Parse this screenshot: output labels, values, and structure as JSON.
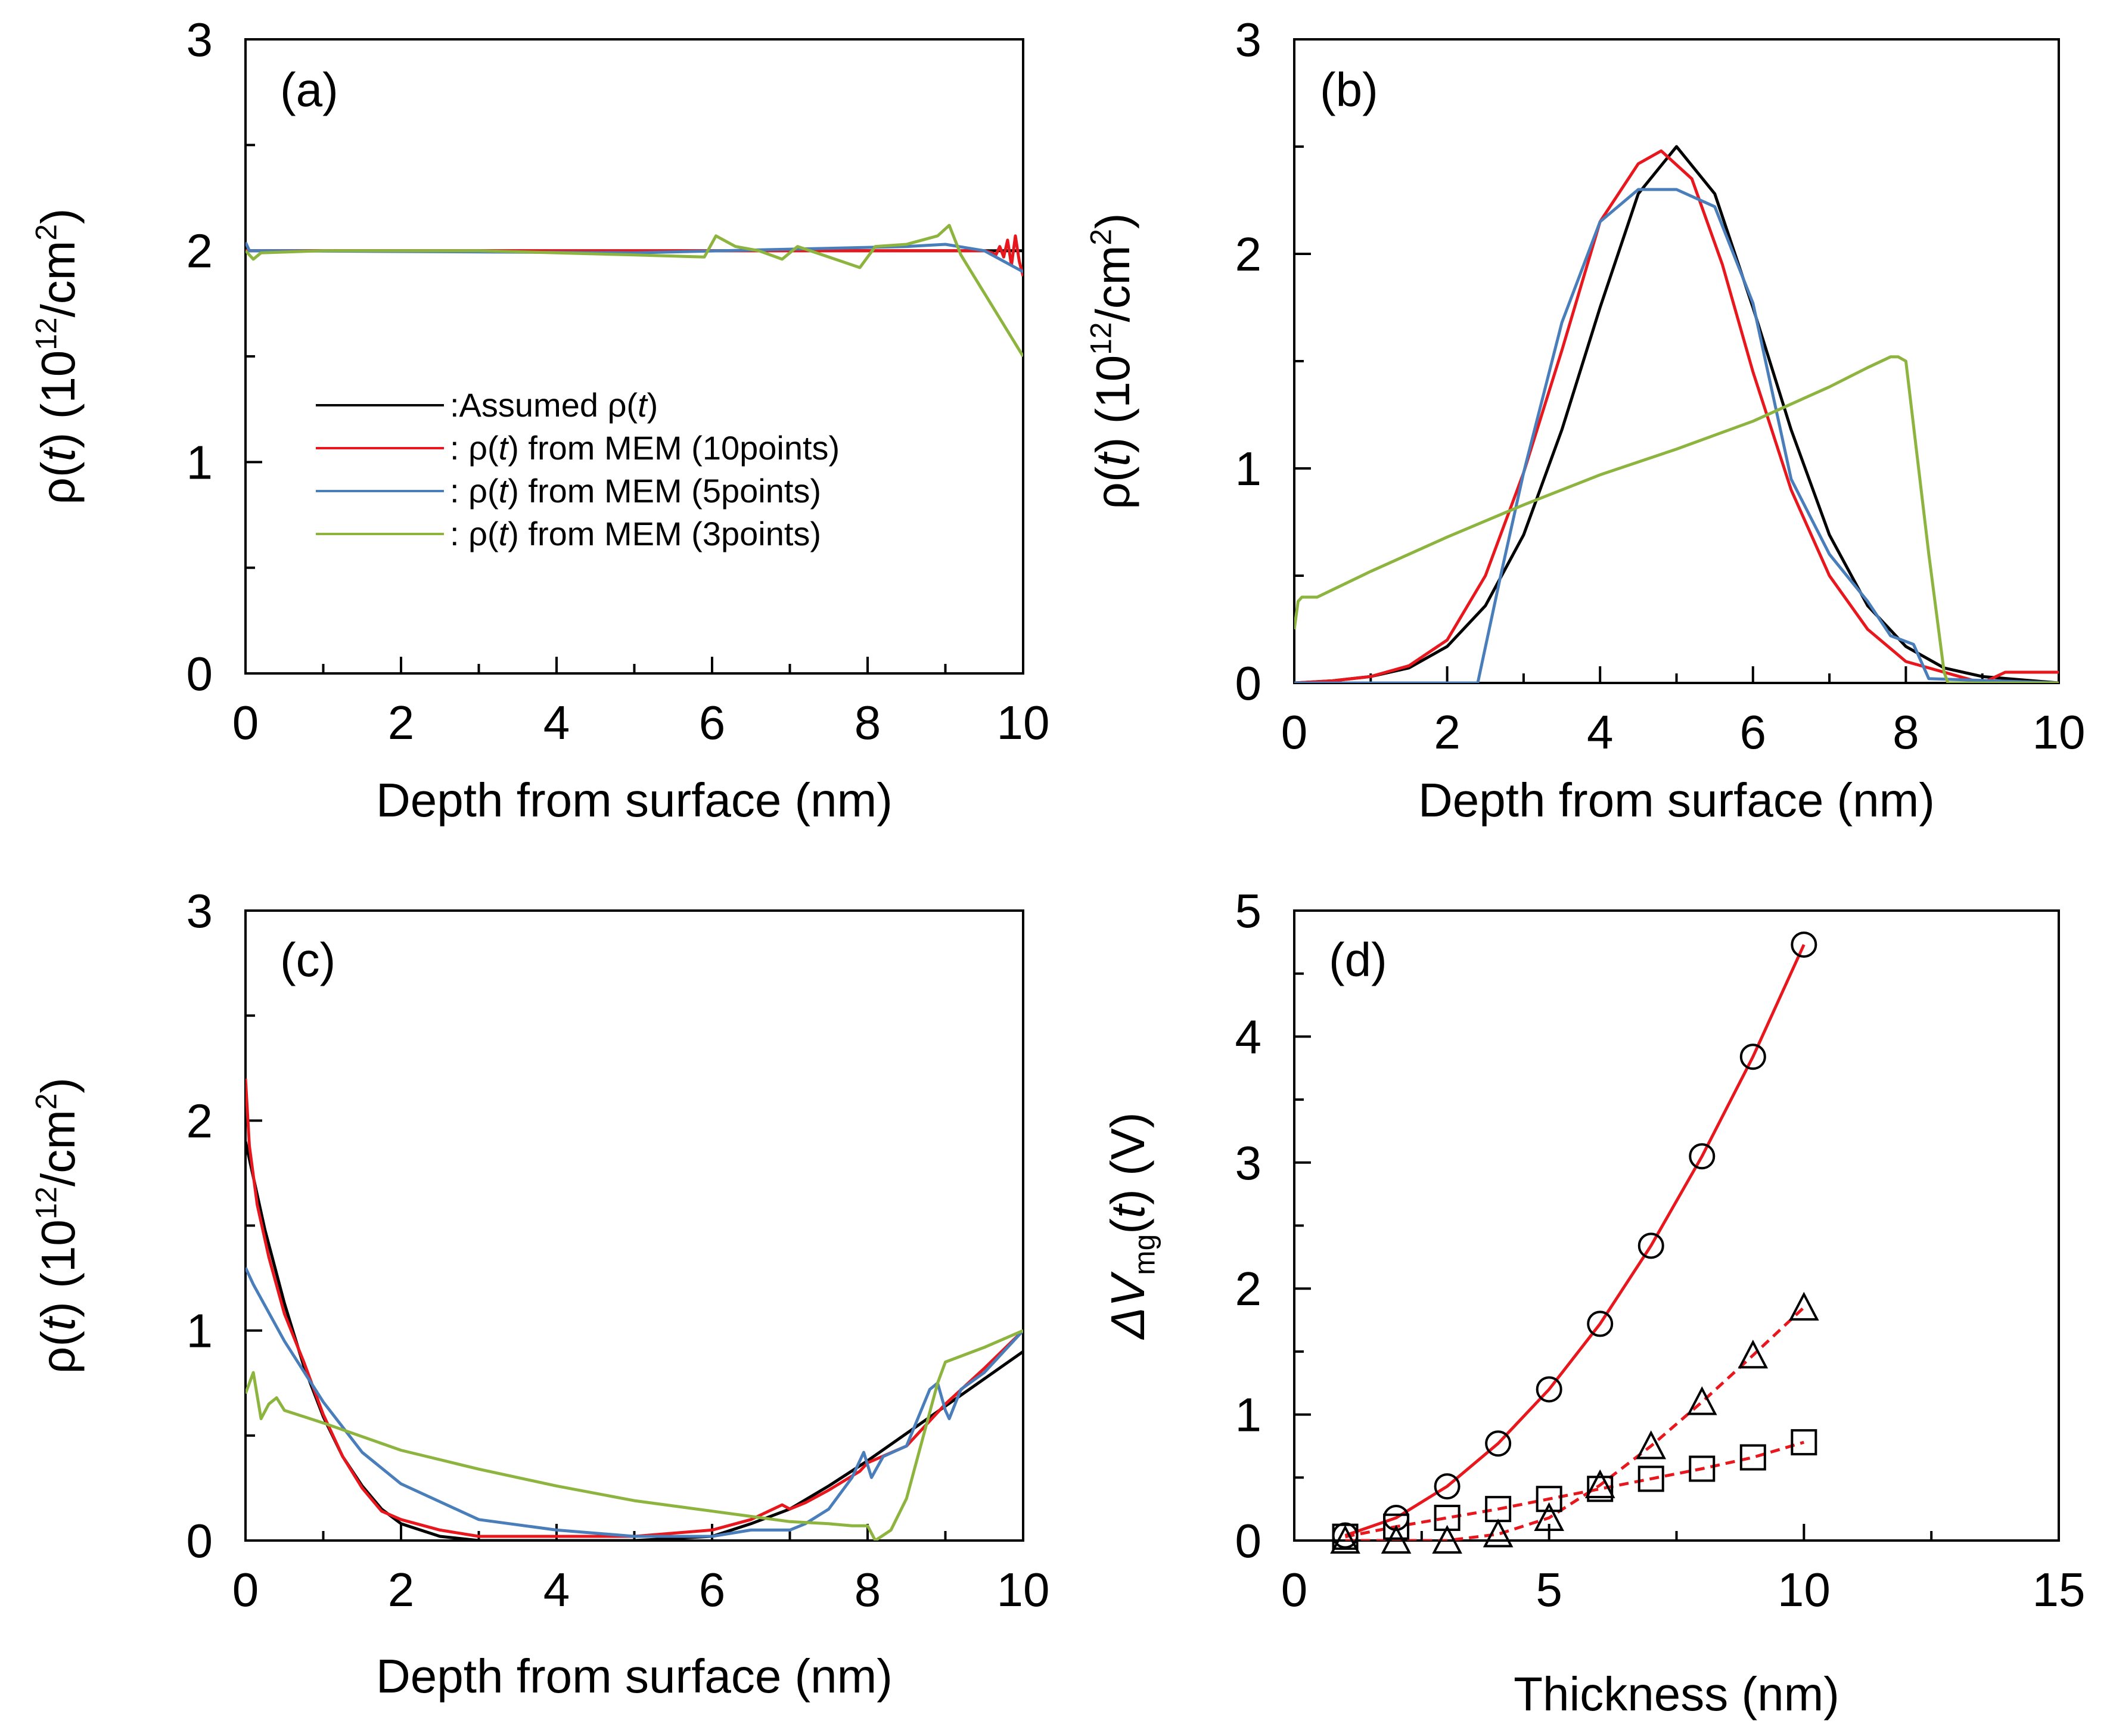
{
  "chart_data": [
    {
      "panel_label": "(a)",
      "type": "line",
      "xlabel": "Depth from surface (nm)",
      "ylabel_parts": [
        "ρ(",
        "t",
        ") (10",
        "12",
        "/cm",
        "2",
        ")"
      ],
      "xlim": [
        0,
        10
      ],
      "ylim": [
        0,
        3
      ],
      "xticks": [
        "0",
        "2",
        "4",
        "6",
        "8",
        "10"
      ],
      "yticks": [
        "0",
        "1",
        "2",
        "3"
      ],
      "legend_placement": "center-left",
      "legend": [
        {
          "color": "#000000",
          "parts": [
            ":Assumed ",
            "ρ(",
            "t",
            ")"
          ]
        },
        {
          "color": "#e8171d",
          "parts": [
            ": ",
            "ρ(",
            "t",
            ") from MEM (10points)"
          ]
        },
        {
          "color": "#4a7ebb",
          "parts": [
            ": ",
            "ρ(",
            "t",
            ") from MEM (5points)"
          ]
        },
        {
          "color": "#8db43e",
          "parts": [
            ": ",
            "ρ(",
            "t",
            ") from MEM (3points)"
          ]
        }
      ],
      "series": [
        {
          "color": "#000000",
          "x": [
            0,
            10
          ],
          "y": [
            2.0,
            2.0
          ]
        },
        {
          "color": "#e8171d",
          "x": [
            0,
            9.5,
            9.6,
            9.65,
            9.7,
            9.75,
            9.8,
            9.85,
            9.9,
            9.95,
            10
          ],
          "y": [
            2.0,
            2.0,
            1.99,
            1.98,
            2.02,
            1.97,
            2.05,
            1.93,
            2.07,
            1.95,
            1.88
          ]
        },
        {
          "color": "#4a7ebb",
          "x": [
            0,
            0.05,
            0.1,
            5,
            8.5,
            9,
            9.5,
            10
          ],
          "y": [
            2.04,
            2.0,
            2.0,
            1.99,
            2.02,
            2.03,
            2.0,
            1.9
          ]
        },
        {
          "color": "#8db43e",
          "x": [
            0,
            0.1,
            0.2,
            1,
            2,
            3,
            4,
            5,
            5.9,
            6.05,
            6.3,
            6.6,
            6.9,
            7.1,
            7.5,
            7.9,
            8.0,
            8.1,
            8.5,
            8.9,
            9.05,
            9.2,
            10
          ],
          "y": [
            2.0,
            1.96,
            1.99,
            2.0,
            2.0,
            2.0,
            1.99,
            1.98,
            1.97,
            2.07,
            2.02,
            2.0,
            1.96,
            2.02,
            1.97,
            1.92,
            1.97,
            2.02,
            2.03,
            2.07,
            2.12,
            1.98,
            1.5
          ]
        }
      ]
    },
    {
      "panel_label": "(b)",
      "type": "line",
      "xlabel": "Depth from surface (nm)",
      "ylabel_parts": [
        "ρ(",
        "t",
        ") (10",
        "12",
        "/cm",
        "2",
        ")"
      ],
      "xlim": [
        0,
        10
      ],
      "ylim": [
        0,
        3
      ],
      "xticks": [
        "0",
        "2",
        "4",
        "6",
        "8",
        "10"
      ],
      "yticks": [
        "0",
        "1",
        "2",
        "3"
      ],
      "series": [
        {
          "color": "#000000",
          "x": [
            0,
            0.5,
            1,
            1.5,
            2,
            2.5,
            3,
            3.5,
            4,
            4.5,
            5,
            5.5,
            6,
            6.5,
            7,
            7.5,
            8,
            8.5,
            9,
            10
          ],
          "y": [
            0.0,
            0.01,
            0.03,
            0.07,
            0.17,
            0.36,
            0.69,
            1.18,
            1.75,
            2.28,
            2.5,
            2.28,
            1.75,
            1.18,
            0.69,
            0.36,
            0.17,
            0.07,
            0.03,
            0.0
          ]
        },
        {
          "color": "#e8171d",
          "x": [
            0,
            0.5,
            1,
            1.5,
            2,
            2.5,
            3,
            3.5,
            4,
            4.5,
            4.8,
            5.2,
            5.6,
            6,
            6.5,
            7,
            7.5,
            8,
            8.5,
            9,
            9.3,
            10
          ],
          "y": [
            0.0,
            0.01,
            0.03,
            0.08,
            0.2,
            0.5,
            0.98,
            1.55,
            2.15,
            2.42,
            2.48,
            2.35,
            1.95,
            1.45,
            0.9,
            0.5,
            0.25,
            0.1,
            0.05,
            0.0,
            0.05,
            0.05
          ]
        },
        {
          "color": "#4a7ebb",
          "x": [
            0,
            2.3,
            2.4,
            2.7,
            3,
            3.5,
            4,
            4.5,
            5,
            5.5,
            6,
            6.5,
            7,
            7.5,
            7.8,
            8.1,
            8.3,
            10
          ],
          "y": [
            0.0,
            0.0,
            0.0,
            0.5,
            0.98,
            1.68,
            2.15,
            2.3,
            2.3,
            2.22,
            1.77,
            0.95,
            0.6,
            0.38,
            0.22,
            0.18,
            0.02,
            0.0
          ]
        },
        {
          "color": "#8db43e",
          "x": [
            0,
            0.05,
            0.1,
            0.3,
            1,
            2,
            3,
            4,
            5,
            6,
            7,
            7.5,
            7.8,
            7.9,
            8.0,
            8.3,
            8.5,
            8.55,
            10
          ],
          "y": [
            0.25,
            0.38,
            0.4,
            0.4,
            0.52,
            0.68,
            0.83,
            0.97,
            1.09,
            1.22,
            1.38,
            1.47,
            1.52,
            1.52,
            1.5,
            0.6,
            0.05,
            0.0,
            0.0
          ]
        }
      ]
    },
    {
      "panel_label": "(c)",
      "type": "line",
      "xlabel": "Depth from surface (nm)",
      "ylabel_parts": [
        "ρ(",
        "t",
        ") (10",
        "12",
        "/cm",
        "2",
        ")"
      ],
      "xlim": [
        0,
        10
      ],
      "ylim": [
        0,
        3
      ],
      "xticks": [
        "0",
        "2",
        "4",
        "6",
        "8",
        "10"
      ],
      "yticks": [
        "0",
        "1",
        "2",
        "3"
      ],
      "series": [
        {
          "color": "#000000",
          "x": [
            0,
            0.25,
            0.5,
            0.75,
            1,
            1.25,
            1.5,
            1.75,
            2,
            2.5,
            3,
            4,
            5,
            6,
            6.5,
            7,
            7.5,
            8,
            8.5,
            9,
            9.5,
            10
          ],
          "y": [
            1.9,
            1.48,
            1.13,
            0.83,
            0.59,
            0.4,
            0.26,
            0.15,
            0.08,
            0.02,
            0.0,
            0.0,
            0.0,
            0.02,
            0.08,
            0.15,
            0.26,
            0.38,
            0.51,
            0.64,
            0.77,
            0.9
          ]
        },
        {
          "color": "#e8171d",
          "x": [
            0,
            0.05,
            0.15,
            0.3,
            0.5,
            0.75,
            1,
            1.25,
            1.5,
            1.75,
            2,
            2.5,
            3,
            4,
            5,
            6,
            6.5,
            6.9,
            7.0,
            7.2,
            7.5,
            7.9,
            8.0,
            8.5,
            9,
            9.5,
            10
          ],
          "y": [
            2.2,
            1.88,
            1.6,
            1.35,
            1.08,
            0.85,
            0.6,
            0.4,
            0.25,
            0.14,
            0.1,
            0.05,
            0.02,
            0.02,
            0.02,
            0.05,
            0.1,
            0.17,
            0.15,
            0.18,
            0.24,
            0.33,
            0.37,
            0.45,
            0.65,
            0.82,
            1.0
          ]
        },
        {
          "color": "#4a7ebb",
          "x": [
            0,
            0.1,
            0.5,
            1,
            1.5,
            2,
            3,
            4,
            5,
            6,
            6.5,
            7,
            7.2,
            7.5,
            7.8,
            7.95,
            8.05,
            8.2,
            8.5,
            8.8,
            8.9,
            9.0,
            9.05,
            9.2,
            9.5,
            10
          ],
          "y": [
            1.3,
            1.22,
            0.95,
            0.66,
            0.42,
            0.27,
            0.1,
            0.05,
            0.02,
            0.02,
            0.05,
            0.05,
            0.08,
            0.15,
            0.3,
            0.42,
            0.3,
            0.4,
            0.45,
            0.72,
            0.75,
            0.62,
            0.58,
            0.72,
            0.8,
            1.0
          ]
        },
        {
          "color": "#8db43e",
          "x": [
            0,
            0.1,
            0.2,
            0.3,
            0.4,
            0.5,
            1,
            2,
            3,
            4,
            5,
            6,
            7,
            7.5,
            7.8,
            8.0,
            8.1,
            8.3,
            8.5,
            8.9,
            9.0,
            9.5,
            10
          ],
          "y": [
            0.7,
            0.8,
            0.58,
            0.65,
            0.68,
            0.62,
            0.56,
            0.43,
            0.34,
            0.26,
            0.19,
            0.14,
            0.09,
            0.08,
            0.07,
            0.07,
            0.0,
            0.05,
            0.2,
            0.75,
            0.85,
            0.92,
            1.0
          ]
        }
      ]
    },
    {
      "panel_label": "(d)",
      "type": "scatter",
      "xlabel": "Thickness (nm)",
      "ylabel_parts": [
        "ΔV",
        "mg",
        "(",
        "t",
        ") (V)"
      ],
      "xlim": [
        0,
        15
      ],
      "ylim": [
        0,
        5
      ],
      "xticks": [
        "0",
        "5",
        "10",
        "15"
      ],
      "yticks": [
        "0",
        "1",
        "2",
        "3",
        "4",
        "5"
      ],
      "series": [
        {
          "marker": "circle",
          "line_color": "#e8171d",
          "line_style": "solid",
          "x": [
            1,
            2,
            3,
            4,
            5,
            6,
            7,
            8,
            9,
            10
          ],
          "y": [
            0.04,
            0.18,
            0.43,
            0.77,
            1.2,
            1.72,
            2.34,
            3.05,
            3.84,
            4.73
          ]
        },
        {
          "marker": "triangle",
          "line_color": "#e8171d",
          "line_style": "dashed",
          "x": [
            1,
            2,
            3,
            4,
            5,
            6,
            7,
            8,
            9,
            10
          ],
          "y": [
            0.0,
            0.0,
            0.0,
            0.05,
            0.18,
            0.44,
            0.75,
            1.1,
            1.47,
            1.85
          ]
        },
        {
          "marker": "square",
          "line_color": "#e8171d",
          "line_style": "dashed",
          "x": [
            1,
            2,
            3,
            4,
            5,
            6,
            7,
            8,
            9,
            10
          ],
          "y": [
            0.03,
            0.11,
            0.18,
            0.25,
            0.33,
            0.41,
            0.49,
            0.57,
            0.66,
            0.78
          ]
        }
      ]
    }
  ]
}
